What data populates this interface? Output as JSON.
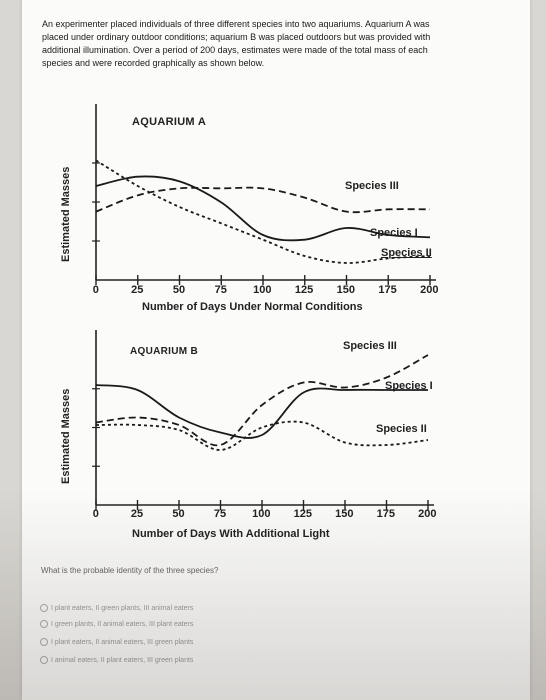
{
  "intro": [
    "An experimenter placed individuals of three different species into two aquariums. Aquarium A was",
    "placed under ordinary outdoor conditions; aquarium B was placed outdoors but was provided with",
    "additional illumination. Over a period of 200 days, estimates were made of the total mass of each",
    "species and were recorded graphically as shown below."
  ],
  "chart_data": [
    {
      "type": "line",
      "title": "AQUARIUM A",
      "xlabel": "Number of Days Under Normal Conditions",
      "ylabel": "Estimated Masses",
      "xlim": [
        0,
        200
      ],
      "x_ticks": [
        "0",
        "25",
        "50",
        "75",
        "100",
        "125",
        "150",
        "175",
        "200"
      ],
      "series": [
        {
          "name": "Species III",
          "x": [
            0,
            25,
            50,
            75,
            100,
            125,
            150,
            175,
            200
          ],
          "values": [
            50,
            64,
            70,
            70,
            70,
            62,
            50,
            52,
            52
          ]
        },
        {
          "name": "Species I",
          "x": [
            0,
            25,
            50,
            75,
            100,
            125,
            150,
            175,
            200
          ],
          "values": [
            72,
            80,
            76,
            58,
            30,
            26,
            36,
            30,
            28
          ]
        },
        {
          "name": "Species II",
          "x": [
            0,
            25,
            50,
            75,
            100,
            125,
            150,
            175,
            200
          ],
          "values": [
            94,
            72,
            54,
            40,
            26,
            12,
            6,
            10,
            12
          ]
        }
      ]
    },
    {
      "type": "line",
      "title": "AQUARIUM B",
      "xlabel": "Number of Days With Additional Light",
      "ylabel": "Estimated Masses",
      "xlim": [
        0,
        200
      ],
      "x_ticks": [
        "0",
        "25",
        "50",
        "75",
        "100",
        "125",
        "150",
        "175",
        "200"
      ],
      "series": [
        {
          "name": "Species III",
          "x": [
            0,
            25,
            50,
            75,
            100,
            125,
            150,
            175,
            200
          ],
          "values": [
            58,
            62,
            56,
            40,
            72,
            90,
            86,
            94,
            112
          ]
        },
        {
          "name": "Species I",
          "x": [
            0,
            25,
            50,
            75,
            100,
            125,
            150,
            175,
            200
          ],
          "values": [
            88,
            84,
            62,
            50,
            48,
            82,
            84,
            84,
            84
          ]
        },
        {
          "name": "Species II",
          "x": [
            0,
            25,
            50,
            75,
            100,
            125,
            150,
            175,
            200
          ],
          "values": [
            56,
            56,
            52,
            36,
            54,
            58,
            42,
            40,
            44
          ]
        }
      ]
    }
  ],
  "question": "What is the probable identity of the three species?",
  "choices": [
    "I plant eaters, II green plants, III animal eaters",
    "I green plants, II animal eaters, III plant eaters",
    "I plant eaters, II animal eaters, III green plants",
    "I animal eaters, II plant eaters, III green plants"
  ]
}
